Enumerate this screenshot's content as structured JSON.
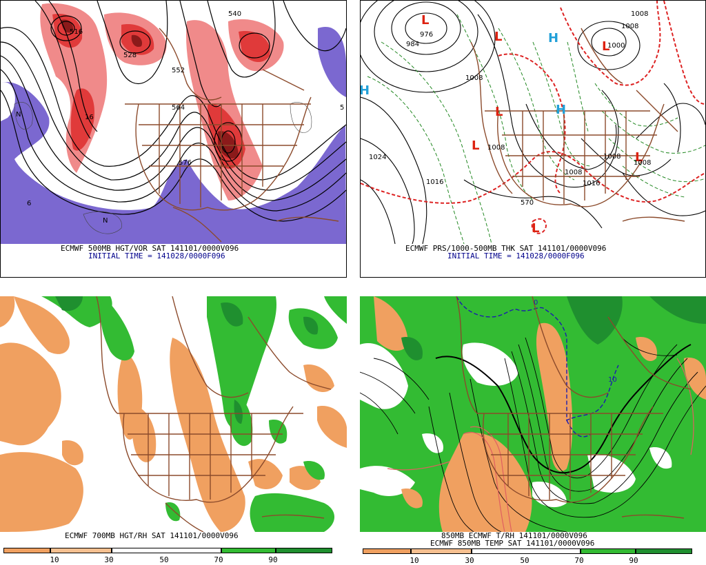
{
  "panels": {
    "top_left": {
      "caption_line1": "ECMWF 500MB HGT/VOR SAT 141101/0000V096",
      "caption_line2": "INITIAL TIME = 141028/0000F096",
      "labels": [
        "516",
        "528",
        "552",
        "564",
        "576",
        "540",
        "6",
        "N",
        "N",
        "16",
        "5"
      ]
    },
    "top_right": {
      "caption_line1": "ECMWF PRS/1000-500MB THK SAT 141101/0000V096",
      "caption_line2": "INITIAL TIME = 141028/0000F096",
      "lows": [
        "L",
        "L",
        "L",
        "L",
        "L",
        "L",
        "L"
      ],
      "highs": [
        "H",
        "H",
        "H"
      ],
      "labels": [
        "1008",
        "1008",
        "1000",
        "976",
        "984",
        "1008",
        "1024",
        "1016",
        "1008",
        "1008",
        "1016",
        "570",
        "1008",
        "1008"
      ]
    },
    "bottom_left": {
      "caption_line1": "ECMWF 700MB HGT/RH SAT 141101/0000V096",
      "legend_ticks": [
        "10",
        "30",
        "50",
        "70",
        "90"
      ]
    },
    "bottom_right": {
      "caption_line1": "850MB ECMWF T/RH 141101/0000V096",
      "caption_line2": "ECMWF 850MB TEMP SAT 141101/0000V096",
      "labels": [
        "0",
        "10"
      ],
      "legend_ticks": [
        "10",
        "30",
        "50",
        "70",
        "90"
      ]
    }
  },
  "colors": {
    "vorticity_red": "#e03a3a",
    "vorticity_light": "#f08a8a",
    "negative_purple": "#7b68d0",
    "rh_dry": "#f0a060",
    "rh_moist": "#33bb33",
    "rh_very_moist": "#1f8f2f",
    "border_brown": "#8b4a2b",
    "contour_black": "#000000",
    "low_red": "#dd2211",
    "high_cyan": "#22a0d8",
    "thickness_red": "#dd2222",
    "thickness_green": "#228822"
  }
}
